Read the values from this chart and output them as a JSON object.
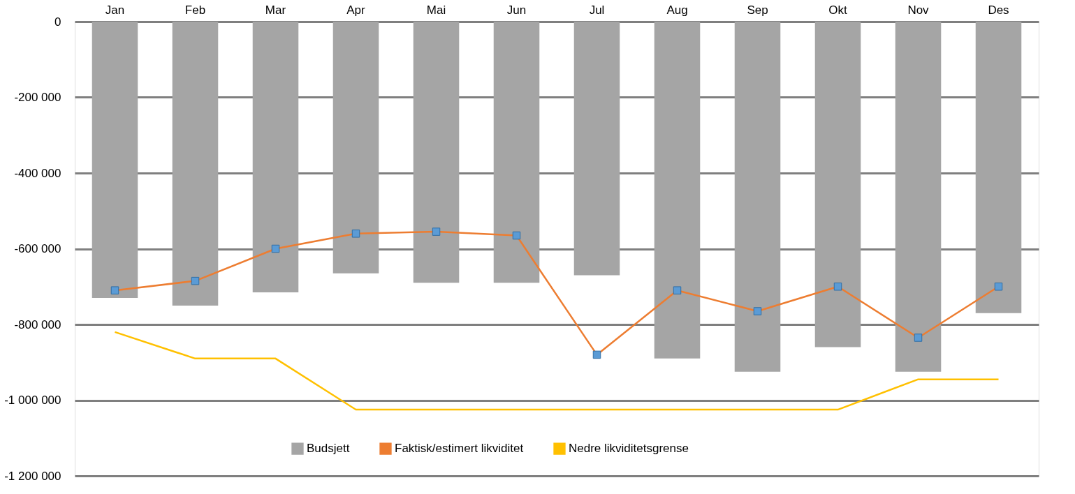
{
  "chart_data": {
    "type": "bar",
    "categories": [
      "Jan",
      "Feb",
      "Mar",
      "Apr",
      "Mai",
      "Jun",
      "Jul",
      "Aug",
      "Sep",
      "Okt",
      "Nov",
      "Des"
    ],
    "series": [
      {
        "name": "Budsjett",
        "color": "#a5a5a5",
        "values": [
          -730000,
          -750000,
          -715000,
          -665000,
          -690000,
          -690000,
          -670000,
          -890000,
          -925000,
          -860000,
          -925000,
          -770000
        ]
      },
      {
        "name": "Faktisk/estimert likviditet",
        "type": "line",
        "color": "#ed7d31",
        "marker": "square",
        "colors": [
          "#5b9bd5",
          "#5b9bd5",
          "#5b9bd5",
          "#5b9bd5",
          "#5b9bd5",
          "#5b9bd5",
          "#5b9bd5",
          "#5b9bd5",
          "#5b9bd5",
          "#5b9bd5",
          "#5b9bd5",
          "#5b9bd5"
        ],
        "values": [
          -710000,
          -685000,
          -600000,
          -560000,
          -555000,
          -565000,
          -880000,
          -710000,
          -765000,
          -700000,
          -835000,
          -700000
        ]
      },
      {
        "name": "Nedre likviditetsgrense",
        "type": "line",
        "color": "#ffc000",
        "marker": "none",
        "values": [
          -820000,
          -890000,
          -890000,
          -1025000,
          -1025000,
          -1025000,
          -1025000,
          -1025000,
          -1025000,
          -1025000,
          -945000,
          -945000
        ]
      }
    ],
    "ylim": [
      -1200000,
      0
    ],
    "yticks": [
      {
        "value": 0,
        "label": "0"
      },
      {
        "value": -200000,
        "label": "-200 000"
      },
      {
        "value": -400000,
        "label": "-400 000"
      },
      {
        "value": -600000,
        "label": "-600 000"
      },
      {
        "value": -800000,
        "label": "-800 000"
      },
      {
        "value": -1000000,
        "label": "-1 000 000"
      },
      {
        "value": -1200000,
        "label": "-1 200 000"
      }
    ],
    "grid": "y",
    "legend": "bottom"
  }
}
